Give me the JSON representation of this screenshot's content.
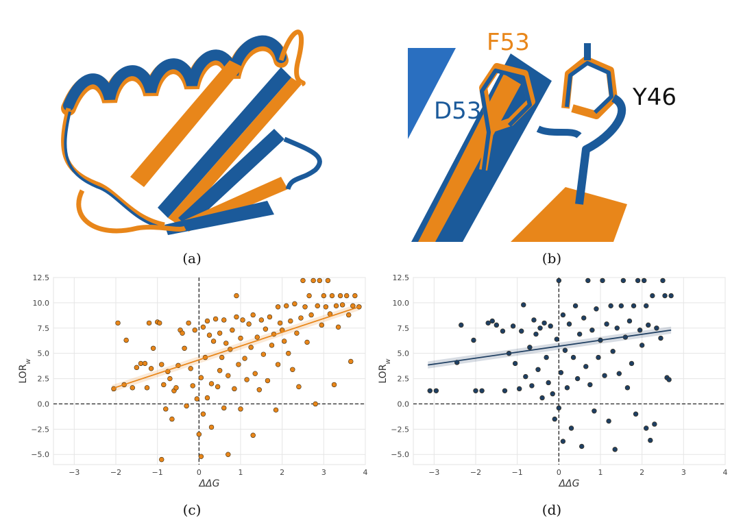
{
  "captions": {
    "a": "(a)",
    "b": "(b)",
    "c": "(c)",
    "d": "(d)"
  },
  "panel_b_labels": {
    "f53": "F53",
    "d53": "D53",
    "y46": "Y46"
  },
  "colors": {
    "orange": "#e8861a",
    "blue": "#1b5a9a",
    "navy": "#1f3f62"
  },
  "chart_data": [
    {
      "type": "scatter",
      "panel": "c",
      "xlabel": "ΔΔG",
      "ylabel": "LOR_w",
      "xlim": [
        -3.5,
        4
      ],
      "ylim": [
        -6,
        12.5
      ],
      "xticks": [
        -3,
        -2,
        -1,
        0,
        1,
        2,
        3,
        4
      ],
      "yticks": [
        -5.0,
        -2.5,
        0.0,
        2.5,
        5.0,
        7.5,
        10.0,
        12.5
      ],
      "xtick_labels": [
        "−3",
        "−2",
        "−1",
        "0",
        "1",
        "2",
        "3",
        "4"
      ],
      "ytick_labels": [
        "−5.0",
        "−2.5",
        "0.0",
        "2.5",
        "5.0",
        "7.5",
        "10.0",
        "12.5"
      ],
      "grid": true,
      "reference_lines": {
        "x": 0,
        "y": 0,
        "style": "dashed"
      },
      "regression": {
        "x": [
          -2.1,
          3.85
        ],
        "y": [
          1.5,
          9.6
        ]
      },
      "color": "#e8861a",
      "points": [
        [
          -2.05,
          1.5
        ],
        [
          -1.95,
          8.0
        ],
        [
          -1.8,
          1.9
        ],
        [
          -1.75,
          6.3
        ],
        [
          -1.6,
          1.6
        ],
        [
          -1.5,
          3.6
        ],
        [
          -1.4,
          4.0
        ],
        [
          -1.3,
          4.0
        ],
        [
          -1.25,
          1.6
        ],
        [
          -1.2,
          8.0
        ],
        [
          -1.15,
          3.5
        ],
        [
          -1.1,
          5.5
        ],
        [
          -1.0,
          8.1
        ],
        [
          -0.95,
          8.0
        ],
        [
          -0.9,
          3.9
        ],
        [
          -0.9,
          -5.5
        ],
        [
          -0.85,
          1.9
        ],
        [
          -0.8,
          -0.5
        ],
        [
          -0.75,
          3.2
        ],
        [
          -0.7,
          2.5
        ],
        [
          -0.65,
          -1.5
        ],
        [
          -0.6,
          1.3
        ],
        [
          -0.55,
          1.6
        ],
        [
          -0.5,
          3.8
        ],
        [
          -0.45,
          7.3
        ],
        [
          -0.4,
          7.0
        ],
        [
          -0.35,
          5.5
        ],
        [
          -0.3,
          -0.2
        ],
        [
          -0.25,
          8.0
        ],
        [
          -0.2,
          3.5
        ],
        [
          -0.15,
          1.8
        ],
        [
          -0.1,
          7.3
        ],
        [
          -0.05,
          0.5
        ],
        [
          0.0,
          -3.0
        ],
        [
          0.05,
          -5.2
        ],
        [
          0.05,
          2.6
        ],
        [
          0.1,
          7.6
        ],
        [
          0.1,
          -1.0
        ],
        [
          0.15,
          4.6
        ],
        [
          0.2,
          0.6
        ],
        [
          0.2,
          8.2
        ],
        [
          0.25,
          6.8
        ],
        [
          0.3,
          -2.3
        ],
        [
          0.3,
          2.0
        ],
        [
          0.35,
          6.2
        ],
        [
          0.4,
          8.4
        ],
        [
          0.45,
          1.7
        ],
        [
          0.5,
          7.0
        ],
        [
          0.5,
          3.3
        ],
        [
          0.55,
          4.6
        ],
        [
          0.6,
          -0.4
        ],
        [
          0.6,
          8.3
        ],
        [
          0.65,
          6.0
        ],
        [
          0.7,
          2.8
        ],
        [
          0.7,
          -5.0
        ],
        [
          0.75,
          5.4
        ],
        [
          0.8,
          7.3
        ],
        [
          0.85,
          1.5
        ],
        [
          0.9,
          8.6
        ],
        [
          0.9,
          10.7
        ],
        [
          0.95,
          3.9
        ],
        [
          1.0,
          6.5
        ],
        [
          1.0,
          -0.5
        ],
        [
          1.05,
          8.3
        ],
        [
          1.1,
          4.5
        ],
        [
          1.15,
          2.4
        ],
        [
          1.2,
          7.9
        ],
        [
          1.25,
          5.6
        ],
        [
          1.3,
          -3.1
        ],
        [
          1.3,
          8.8
        ],
        [
          1.35,
          3.0
        ],
        [
          1.4,
          6.6
        ],
        [
          1.45,
          1.4
        ],
        [
          1.5,
          8.3
        ],
        [
          1.55,
          4.9
        ],
        [
          1.6,
          7.4
        ],
        [
          1.65,
          2.3
        ],
        [
          1.7,
          8.6
        ],
        [
          1.75,
          5.8
        ],
        [
          1.8,
          6.9
        ],
        [
          1.85,
          -0.6
        ],
        [
          1.9,
          9.6
        ],
        [
          1.9,
          3.9
        ],
        [
          1.95,
          8.0
        ],
        [
          2.0,
          7.3
        ],
        [
          2.05,
          6.2
        ],
        [
          2.1,
          9.7
        ],
        [
          2.15,
          5.0
        ],
        [
          2.2,
          8.2
        ],
        [
          2.25,
          3.4
        ],
        [
          2.3,
          9.9
        ],
        [
          2.35,
          7.0
        ],
        [
          2.4,
          1.7
        ],
        [
          2.45,
          8.5
        ],
        [
          2.5,
          12.2
        ],
        [
          2.55,
          9.6
        ],
        [
          2.6,
          6.1
        ],
        [
          2.65,
          10.7
        ],
        [
          2.7,
          8.8
        ],
        [
          2.75,
          12.2
        ],
        [
          2.8,
          0.0
        ],
        [
          2.85,
          9.7
        ],
        [
          2.9,
          12.2
        ],
        [
          2.95,
          7.8
        ],
        [
          3.0,
          10.7
        ],
        [
          3.05,
          9.6
        ],
        [
          3.1,
          12.2
        ],
        [
          3.15,
          8.9
        ],
        [
          3.2,
          10.7
        ],
        [
          3.25,
          1.9
        ],
        [
          3.3,
          9.7
        ],
        [
          3.35,
          7.6
        ],
        [
          3.4,
          10.7
        ],
        [
          3.45,
          9.8
        ],
        [
          3.55,
          10.7
        ],
        [
          3.6,
          8.8
        ],
        [
          3.65,
          4.2
        ],
        [
          3.7,
          9.7
        ],
        [
          3.75,
          10.7
        ],
        [
          3.85,
          9.6
        ]
      ]
    },
    {
      "type": "scatter",
      "panel": "d",
      "xlabel": "ΔΔG",
      "ylabel": "LOR_w",
      "xlim": [
        -3.5,
        4
      ],
      "ylim": [
        -6,
        12.5
      ],
      "xticks": [
        -3,
        -2,
        -1,
        0,
        1,
        2,
        3,
        4
      ],
      "yticks": [
        -5.0,
        -2.5,
        0.0,
        2.5,
        5.0,
        7.5,
        10.0,
        12.5
      ],
      "xtick_labels": [
        "−3",
        "−2",
        "−1",
        "0",
        "1",
        "2",
        "3",
        "4"
      ],
      "ytick_labels": [
        "−5.0",
        "−2.5",
        "0.0",
        "2.5",
        "5.0",
        "7.5",
        "10.0",
        "12.5"
      ],
      "grid": true,
      "reference_lines": {
        "x": 0,
        "y": 0,
        "style": "dashed"
      },
      "regression": {
        "x": [
          -3.15,
          2.7
        ],
        "y": [
          3.85,
          7.3
        ]
      },
      "color": "#1f3f62",
      "points": [
        [
          -3.1,
          1.3
        ],
        [
          -2.95,
          1.3
        ],
        [
          -2.45,
          4.1
        ],
        [
          -2.35,
          7.8
        ],
        [
          -2.05,
          6.3
        ],
        [
          -2.0,
          1.3
        ],
        [
          -1.85,
          1.3
        ],
        [
          -1.7,
          8.0
        ],
        [
          -1.6,
          8.2
        ],
        [
          -1.5,
          7.8
        ],
        [
          -1.35,
          7.2
        ],
        [
          -1.3,
          1.3
        ],
        [
          -1.2,
          5.0
        ],
        [
          -1.1,
          7.7
        ],
        [
          -1.05,
          4.0
        ],
        [
          -0.95,
          1.5
        ],
        [
          -0.9,
          7.2
        ],
        [
          -0.85,
          9.8
        ],
        [
          -0.8,
          2.7
        ],
        [
          -0.7,
          5.6
        ],
        [
          -0.65,
          1.8
        ],
        [
          -0.6,
          8.3
        ],
        [
          -0.55,
          6.9
        ],
        [
          -0.5,
          3.4
        ],
        [
          -0.45,
          7.5
        ],
        [
          -0.4,
          0.6
        ],
        [
          -0.35,
          8.0
        ],
        [
          -0.3,
          4.6
        ],
        [
          -0.25,
          2.1
        ],
        [
          -0.2,
          7.7
        ],
        [
          -0.15,
          1.0
        ],
        [
          -0.1,
          -1.5
        ],
        [
          -0.05,
          6.4
        ],
        [
          0.0,
          12.2
        ],
        [
          0.0,
          -0.4
        ],
        [
          0.05,
          3.1
        ],
        [
          0.1,
          8.8
        ],
        [
          0.1,
          -3.7
        ],
        [
          0.15,
          5.3
        ],
        [
          0.2,
          1.6
        ],
        [
          0.25,
          7.9
        ],
        [
          0.3,
          -2.4
        ],
        [
          0.35,
          4.6
        ],
        [
          0.4,
          9.7
        ],
        [
          0.45,
          2.5
        ],
        [
          0.5,
          6.9
        ],
        [
          0.55,
          -4.2
        ],
        [
          0.6,
          8.5
        ],
        [
          0.65,
          3.7
        ],
        [
          0.7,
          12.2
        ],
        [
          0.75,
          1.9
        ],
        [
          0.8,
          7.3
        ],
        [
          0.85,
          -0.7
        ],
        [
          0.9,
          9.4
        ],
        [
          0.95,
          4.6
        ],
        [
          1.0,
          6.3
        ],
        [
          1.05,
          12.2
        ],
        [
          1.1,
          2.8
        ],
        [
          1.15,
          7.9
        ],
        [
          1.2,
          -1.7
        ],
        [
          1.25,
          9.7
        ],
        [
          1.3,
          5.2
        ],
        [
          1.35,
          -4.5
        ],
        [
          1.4,
          7.5
        ],
        [
          1.45,
          3.0
        ],
        [
          1.5,
          9.7
        ],
        [
          1.55,
          12.2
        ],
        [
          1.6,
          6.6
        ],
        [
          1.65,
          1.6
        ],
        [
          1.7,
          8.2
        ],
        [
          1.75,
          4.0
        ],
        [
          1.8,
          9.7
        ],
        [
          1.85,
          -1.0
        ],
        [
          1.9,
          12.2
        ],
        [
          1.95,
          7.3
        ],
        [
          2.0,
          5.8
        ],
        [
          2.05,
          12.2
        ],
        [
          2.1,
          -2.4
        ],
        [
          2.1,
          9.7
        ],
        [
          2.15,
          7.8
        ],
        [
          2.2,
          -3.6
        ],
        [
          2.25,
          10.7
        ],
        [
          2.3,
          -2.0
        ],
        [
          2.35,
          7.5
        ],
        [
          2.45,
          6.5
        ],
        [
          2.5,
          12.2
        ],
        [
          2.55,
          10.7
        ],
        [
          2.6,
          2.6
        ],
        [
          2.65,
          2.4
        ],
        [
          2.7,
          10.7
        ]
      ]
    }
  ]
}
